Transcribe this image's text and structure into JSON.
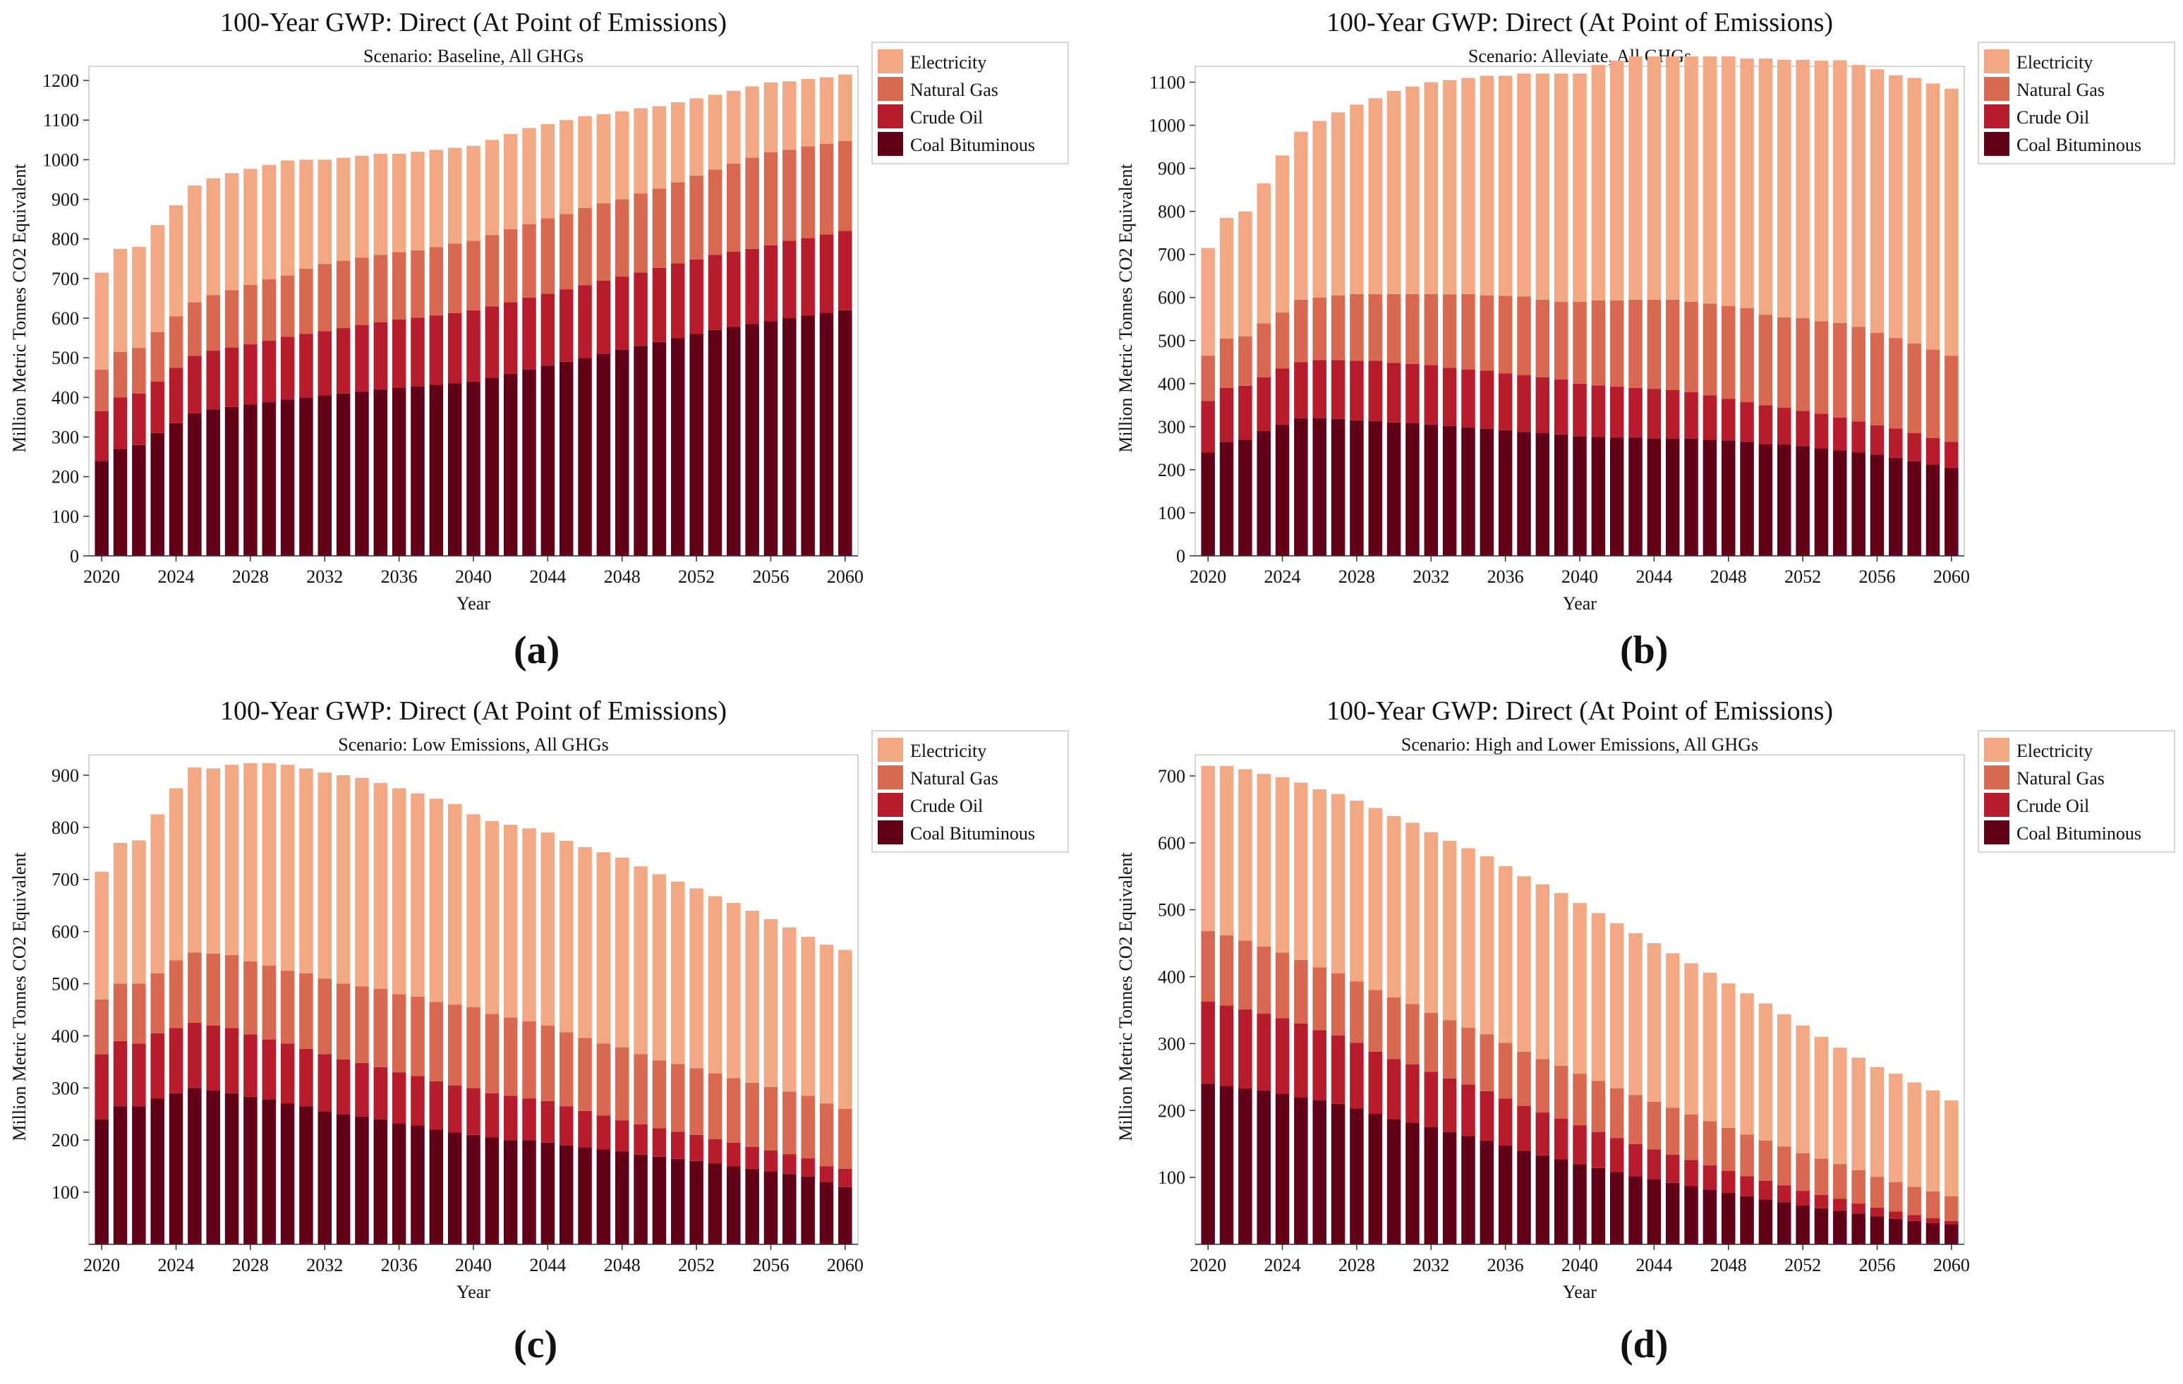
{
  "figure_labels": [
    "(a)",
    "(b)",
    "(c)",
    "(d)"
  ],
  "colors": {
    "Electricity": "#f3a884",
    "Natural Gas": "#d86850",
    "Crude Oil": "#b81c2c",
    "Coal Bituminous": "#620018"
  },
  "chart_data": [
    {
      "type": "bar",
      "stacked": true,
      "title": "100-Year GWP: Direct (At Point of Emissions)",
      "subtitle": "Scenario: Baseline, All GHGs",
      "xlabel": "Year",
      "ylabel": "Million Metric Tonnes CO2 Equivalent",
      "ylim": [
        0,
        1250
      ],
      "yticks": [
        0,
        100,
        200,
        300,
        400,
        500,
        600,
        700,
        800,
        900,
        1000,
        1100,
        1200
      ],
      "xticks": [
        "2020",
        "2024",
        "2028",
        "2032",
        "2036",
        "2040",
        "2044",
        "2048",
        "2052",
        "2056",
        "2060"
      ],
      "x_start": 2020,
      "x_end": 2060,
      "legend": [
        "Electricity",
        "Natural Gas",
        "Crude Oil",
        "Coal Bituminous"
      ],
      "legend_position": "top-right-outside",
      "categories": [
        2020,
        2021,
        2022,
        2023,
        2024,
        2025,
        2026,
        2027,
        2028,
        2029,
        2030,
        2031,
        2032,
        2033,
        2034,
        2035,
        2036,
        2037,
        2038,
        2039,
        2040,
        2041,
        2042,
        2043,
        2044,
        2045,
        2046,
        2047,
        2048,
        2049,
        2050,
        2051,
        2052,
        2053,
        2054,
        2055,
        2056,
        2057,
        2058,
        2059,
        2060
      ],
      "series": [
        {
          "name": "Coal Bituminous",
          "values": [
            240,
            270,
            280,
            310,
            335,
            360,
            370,
            376,
            382,
            388,
            395,
            400,
            405,
            410,
            415,
            420,
            425,
            428,
            432,
            436,
            440,
            450,
            460,
            470,
            480,
            490,
            500,
            510,
            520,
            530,
            540,
            550,
            560,
            570,
            578,
            585,
            592,
            600,
            607,
            614,
            620
          ]
        },
        {
          "name": "Crude Oil",
          "values": [
            125,
            130,
            130,
            130,
            140,
            145,
            148,
            150,
            152,
            155,
            158,
            160,
            162,
            165,
            168,
            170,
            172,
            173,
            175,
            177,
            180,
            180,
            180,
            182,
            182,
            183,
            183,
            185,
            185,
            185,
            187,
            188,
            188,
            190,
            190,
            190,
            192,
            195,
            195,
            197,
            200
          ]
        },
        {
          "name": "Natural Gas",
          "values": [
            105,
            115,
            115,
            125,
            130,
            135,
            140,
            145,
            150,
            155,
            155,
            165,
            170,
            170,
            170,
            170,
            170,
            170,
            172,
            175,
            175,
            180,
            185,
            185,
            190,
            190,
            195,
            195,
            195,
            200,
            200,
            205,
            212,
            215,
            222,
            230,
            235,
            230,
            232,
            229,
            227
          ]
        },
        {
          "name": "Electricity",
          "values": [
            245,
            260,
            255,
            270,
            280,
            295,
            295,
            295,
            293,
            289,
            290,
            275,
            263,
            260,
            257,
            255,
            248,
            249,
            246,
            242,
            240,
            240,
            240,
            243,
            238,
            237,
            232,
            225,
            222,
            215,
            208,
            202,
            195,
            189,
            184,
            180,
            176,
            173,
            170,
            168,
            168
          ]
        }
      ]
    },
    {
      "type": "bar",
      "stacked": true,
      "title": "100-Year GWP: Direct (At Point of Emissions)",
      "subtitle": "Scenario: Alleviate, All GHGs",
      "xlabel": "Year",
      "ylabel": "Million Metric Tonnes CO2 Equivalent",
      "ylim": [
        0,
        1150
      ],
      "yticks": [
        0,
        100,
        200,
        300,
        400,
        500,
        600,
        700,
        800,
        900,
        1000,
        1100
      ],
      "xticks": [
        "2020",
        "2024",
        "2028",
        "2032",
        "2036",
        "2040",
        "2044",
        "2048",
        "2052",
        "2056",
        "2060"
      ],
      "x_start": 2020,
      "x_end": 2060,
      "legend": [
        "Electricity",
        "Natural Gas",
        "Crude Oil",
        "Coal Bituminous"
      ],
      "legend_position": "top-right-outside",
      "categories": [
        2020,
        2021,
        2022,
        2023,
        2024,
        2025,
        2026,
        2027,
        2028,
        2029,
        2030,
        2031,
        2032,
        2033,
        2034,
        2035,
        2036,
        2037,
        2038,
        2039,
        2040,
        2041,
        2042,
        2043,
        2044,
        2045,
        2046,
        2047,
        2048,
        2049,
        2050,
        2051,
        2052,
        2053,
        2054,
        2055,
        2056,
        2057,
        2058,
        2059,
        2060
      ],
      "series": [
        {
          "name": "Coal Bituminous",
          "values": [
            240,
            265,
            270,
            290,
            305,
            320,
            320,
            318,
            315,
            313,
            310,
            308,
            305,
            302,
            298,
            295,
            292,
            288,
            285,
            282,
            278,
            276,
            275,
            275,
            273,
            273,
            272,
            270,
            268,
            265,
            260,
            258,
            255,
            250,
            245,
            240,
            235,
            228,
            220,
            212,
            205
          ]
        },
        {
          "name": "Crude Oil",
          "values": [
            120,
            125,
            125,
            125,
            130,
            130,
            135,
            137,
            138,
            140,
            138,
            138,
            138,
            135,
            135,
            135,
            132,
            132,
            130,
            128,
            122,
            120,
            118,
            115,
            115,
            112,
            108,
            103,
            97,
            92,
            90,
            86,
            82,
            80,
            76,
            72,
            68,
            68,
            65,
            62,
            60
          ]
        },
        {
          "name": "Natural Gas",
          "values": [
            105,
            115,
            115,
            125,
            130,
            145,
            145,
            150,
            155,
            155,
            160,
            162,
            165,
            170,
            175,
            175,
            180,
            182,
            180,
            180,
            190,
            197,
            200,
            205,
            207,
            210,
            210,
            213,
            215,
            218,
            210,
            210,
            215,
            215,
            220,
            220,
            215,
            210,
            208,
            205,
            200
          ]
        },
        {
          "name": "Electricity",
          "values": [
            250,
            280,
            290,
            325,
            365,
            390,
            410,
            425,
            440,
            455,
            472,
            482,
            492,
            498,
            502,
            510,
            511,
            518,
            525,
            530,
            530,
            547,
            557,
            565,
            565,
            565,
            570,
            574,
            580,
            580,
            595,
            598,
            600,
            605,
            610,
            608,
            612,
            610,
            617,
            618,
            620
          ]
        }
      ]
    },
    {
      "type": "bar",
      "stacked": true,
      "title": "100-Year GWP: Direct (At Point of Emissions)",
      "subtitle": "Scenario: Low Emissions, All GHGs",
      "xlabel": "Year",
      "ylabel": "Million Metric Tonnes CO2 Equivalent",
      "ylim": [
        0,
        950
      ],
      "yticks": [
        100,
        200,
        300,
        400,
        500,
        600,
        700,
        800,
        900
      ],
      "xticks": [
        "2020",
        "2024",
        "2028",
        "2032",
        "2036",
        "2040",
        "2044",
        "2048",
        "2052",
        "2056",
        "2060"
      ],
      "x_start": 2020,
      "x_end": 2060,
      "legend": [
        "Electricity",
        "Natural Gas",
        "Crude Oil",
        "Coal Bituminous"
      ],
      "legend_position": "top-right-outside",
      "categories": [
        2020,
        2021,
        2022,
        2023,
        2024,
        2025,
        2026,
        2027,
        2028,
        2029,
        2030,
        2031,
        2032,
        2033,
        2034,
        2035,
        2036,
        2037,
        2038,
        2039,
        2040,
        2041,
        2042,
        2043,
        2044,
        2045,
        2046,
        2047,
        2048,
        2049,
        2050,
        2051,
        2052,
        2053,
        2054,
        2055,
        2056,
        2057,
        2058,
        2059,
        2060
      ],
      "series": [
        {
          "name": "Coal Bituminous",
          "values": [
            240,
            265,
            265,
            280,
            290,
            300,
            295,
            290,
            283,
            278,
            270,
            265,
            255,
            250,
            245,
            240,
            232,
            228,
            220,
            215,
            210,
            205,
            200,
            200,
            195,
            190,
            186,
            182,
            178,
            172,
            168,
            164,
            160,
            155,
            150,
            145,
            140,
            135,
            130,
            120,
            110
          ]
        },
        {
          "name": "Crude Oil",
          "values": [
            125,
            125,
            120,
            125,
            125,
            125,
            125,
            125,
            120,
            115,
            115,
            110,
            110,
            105,
            103,
            100,
            98,
            95,
            93,
            90,
            90,
            85,
            85,
            80,
            80,
            75,
            70,
            65,
            60,
            58,
            55,
            52,
            50,
            47,
            45,
            42,
            40,
            38,
            35,
            30,
            35
          ]
        },
        {
          "name": "Natural Gas",
          "values": [
            105,
            110,
            115,
            115,
            130,
            135,
            138,
            140,
            140,
            142,
            140,
            145,
            145,
            145,
            147,
            150,
            150,
            152,
            152,
            155,
            155,
            152,
            150,
            148,
            145,
            142,
            140,
            138,
            140,
            135,
            130,
            130,
            128,
            126,
            124,
            123,
            122,
            120,
            120,
            120,
            115
          ]
        },
        {
          "name": "Electricity",
          "values": [
            245,
            270,
            275,
            305,
            330,
            355,
            355,
            365,
            380,
            388,
            395,
            393,
            395,
            400,
            400,
            395,
            395,
            390,
            390,
            385,
            370,
            370,
            370,
            370,
            370,
            367,
            366,
            367,
            364,
            360,
            357,
            350,
            345,
            340,
            336,
            330,
            322,
            315,
            305,
            305,
            305
          ]
        }
      ]
    },
    {
      "type": "bar",
      "stacked": true,
      "title": "100-Year GWP: Direct (At Point of Emissions)",
      "subtitle": "Scenario: High and Lower Emissions, All GHGs",
      "xlabel": "Year",
      "ylabel": "Million Metric Tonnes CO2 Equivalent",
      "ylim": [
        0,
        740
      ],
      "yticks": [
        100,
        200,
        300,
        400,
        500,
        600,
        700
      ],
      "xticks": [
        "2020",
        "2024",
        "2028",
        "2032",
        "2036",
        "2040",
        "2044",
        "2048",
        "2052",
        "2056",
        "2060"
      ],
      "x_start": 2020,
      "x_end": 2060,
      "legend": [
        "Electricity",
        "Natural Gas",
        "Crude Oil",
        "Coal Bituminous"
      ],
      "legend_position": "top-right-outside",
      "categories": [
        2020,
        2021,
        2022,
        2023,
        2024,
        2025,
        2026,
        2027,
        2028,
        2029,
        2030,
        2031,
        2032,
        2033,
        2034,
        2035,
        2036,
        2037,
        2038,
        2039,
        2040,
        2041,
        2042,
        2043,
        2044,
        2045,
        2046,
        2047,
        2048,
        2049,
        2050,
        2051,
        2052,
        2053,
        2054,
        2055,
        2056,
        2057,
        2058,
        2059,
        2060
      ],
      "series": [
        {
          "name": "Coal Bituminous",
          "values": [
            240,
            237,
            233,
            230,
            225,
            220,
            215,
            210,
            203,
            195,
            187,
            182,
            175,
            168,
            162,
            155,
            148,
            140,
            133,
            127,
            120,
            114,
            108,
            102,
            97,
            92,
            87,
            82,
            77,
            72,
            67,
            63,
            58,
            54,
            50,
            46,
            42,
            38,
            35,
            32,
            30
          ]
        },
        {
          "name": "Crude Oil",
          "values": [
            123,
            120,
            118,
            115,
            113,
            110,
            105,
            102,
            98,
            93,
            90,
            87,
            83,
            80,
            77,
            74,
            70,
            67,
            64,
            61,
            58,
            54,
            51,
            48,
            45,
            42,
            39,
            36,
            33,
            30,
            28,
            25,
            22,
            20,
            18,
            15,
            13,
            11,
            9,
            7,
            5
          ]
        },
        {
          "name": "Natural Gas",
          "values": [
            105,
            105,
            103,
            100,
            98,
            95,
            94,
            93,
            92,
            92,
            92,
            90,
            88,
            87,
            85,
            85,
            83,
            81,
            80,
            79,
            77,
            76,
            74,
            73,
            71,
            70,
            68,
            66,
            64,
            62,
            60,
            58,
            56,
            54,
            52,
            50,
            46,
            44,
            42,
            40,
            37
          ]
        },
        {
          "name": "Electricity",
          "values": [
            247,
            253,
            256,
            258,
            262,
            265,
            266,
            268,
            270,
            272,
            271,
            271,
            270,
            268,
            268,
            266,
            264,
            262,
            261,
            258,
            255,
            251,
            247,
            242,
            237,
            231,
            226,
            222,
            216,
            211,
            205,
            198,
            191,
            182,
            174,
            168,
            164,
            162,
            156,
            151,
            143
          ]
        }
      ]
    }
  ]
}
